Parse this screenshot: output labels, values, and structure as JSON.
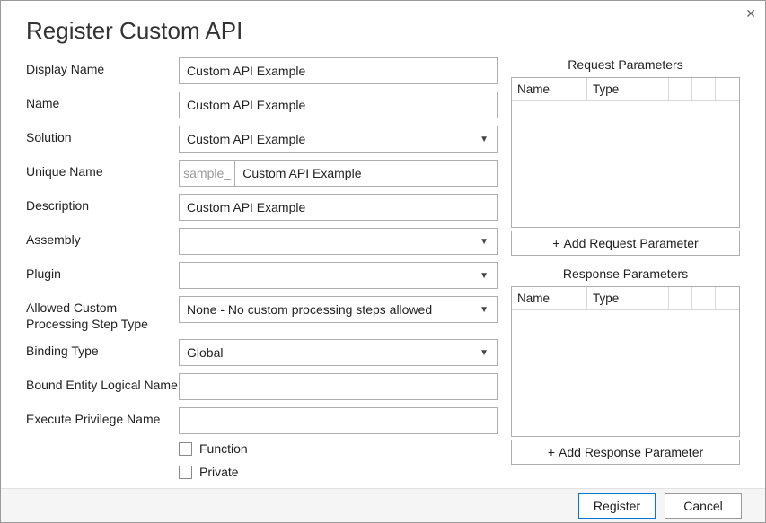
{
  "dialog": {
    "title": "Register Custom API",
    "close_glyph": "✕"
  },
  "form": {
    "displayName": {
      "label": "Display Name",
      "value": "Custom API Example"
    },
    "name": {
      "label": "Name",
      "value": "Custom API Example"
    },
    "solution": {
      "label": "Solution",
      "value": "Custom API Example"
    },
    "uniqueName": {
      "label": "Unique Name",
      "prefix": "sample_",
      "value": "Custom API Example"
    },
    "description": {
      "label": "Description",
      "value": "Custom API Example"
    },
    "assembly": {
      "label": "Assembly",
      "value": ""
    },
    "plugin": {
      "label": "Plugin",
      "value": ""
    },
    "allowedStep": {
      "label": "Allowed Custom Processing Step Type",
      "value": "None - No custom processing steps allowed"
    },
    "bindingType": {
      "label": "Binding Type",
      "value": "Global"
    },
    "boundEntity": {
      "label": "Bound Entity Logical Name",
      "value": ""
    },
    "executePriv": {
      "label": "Execute Privilege Name",
      "value": ""
    },
    "function": {
      "label": "Function",
      "checked": false
    },
    "private": {
      "label": "Private",
      "checked": false
    }
  },
  "requestParams": {
    "title": "Request Parameters",
    "columns": {
      "name": "Name",
      "type": "Type"
    },
    "addLabel": "Add Request Parameter"
  },
  "responseParams": {
    "title": "Response Parameters",
    "columns": {
      "name": "Name",
      "type": "Type"
    },
    "addLabel": "Add Response Parameter"
  },
  "footer": {
    "register": "Register",
    "cancel": "Cancel"
  }
}
